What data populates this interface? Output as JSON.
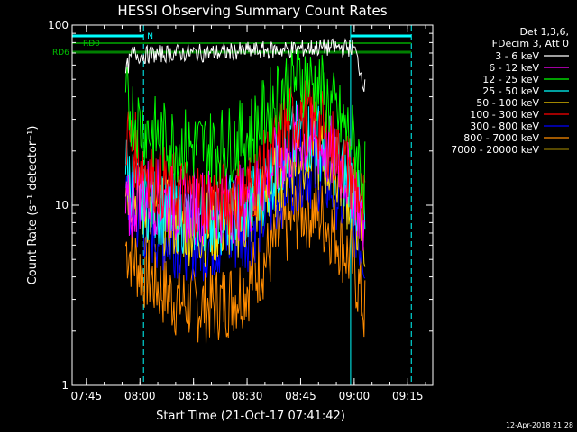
{
  "chart_data": {
    "type": "line",
    "title": "HESSI Observing Summary Count Rates",
    "xlabel": "Start Time (21-Oct-17 07:41:42)",
    "ylabel": "Count Rate (s⁻¹ detector⁻¹)",
    "y_scale": "log",
    "ylim": [
      1,
      100
    ],
    "xlim": [
      "07:41",
      "09:22"
    ],
    "x_ticks": [
      "07:45",
      "08:00",
      "08:15",
      "08:30",
      "08:45",
      "09:00",
      "09:15"
    ],
    "y_ticks": [
      "1",
      "10",
      "100"
    ],
    "legend_position": "top-right",
    "legend_header": [
      "Det 1,3,6,",
      "FDecim 3, Att 0"
    ],
    "footer_date": "12-Apr-2018 21:28",
    "markers": {
      "n_label": "N",
      "rd0_label": "RD0",
      "rd6_label": "RD6",
      "solid_vertical_times": [
        "07:41",
        "08:59"
      ],
      "dashed_vertical_times": [
        "08:01",
        "09:16"
      ]
    },
    "series": [
      {
        "name": "3 - 6 keV",
        "color": "#ffffff",
        "x": [
          "07:56",
          "07:58",
          "08:00",
          "08:10",
          "08:20",
          "08:30",
          "08:40",
          "08:50",
          "08:58",
          "09:00",
          "09:03"
        ],
        "y": [
          55,
          70,
          68,
          70,
          70,
          72,
          73,
          75,
          75,
          75,
          45
        ]
      },
      {
        "name": "6 - 12 keV",
        "color": "#ff00ff",
        "x": [
          "07:56",
          "08:00",
          "08:05",
          "08:10",
          "08:15",
          "08:20",
          "08:25",
          "08:30",
          "08:35",
          "08:40",
          "08:45",
          "08:50",
          "08:55",
          "09:00",
          "09:03"
        ],
        "y": [
          8.5,
          12,
          11,
          10,
          10,
          10,
          10,
          10.5,
          14,
          19,
          23,
          22,
          18,
          13,
          7
        ]
      },
      {
        "name": "12 - 25 keV",
        "color": "#00ff00",
        "x": [
          "07:56",
          "08:00",
          "08:05",
          "08:10",
          "08:15",
          "08:20",
          "08:25",
          "08:30",
          "08:35",
          "08:40",
          "08:45",
          "08:50",
          "08:55",
          "09:00",
          "09:03"
        ],
        "y": [
          38,
          28,
          24,
          22,
          21,
          21,
          22,
          24,
          32,
          45,
          52,
          45,
          32,
          22,
          14
        ]
      },
      {
        "name": "25 - 50 keV",
        "color": "#00ffff",
        "x": [
          "07:56",
          "08:00",
          "08:05",
          "08:10",
          "08:15",
          "08:20",
          "08:25",
          "08:30",
          "08:35",
          "08:40",
          "08:45",
          "08:50",
          "08:55",
          "09:00",
          "09:03"
        ],
        "y": [
          16,
          11,
          10,
          9,
          8.5,
          8.5,
          9,
          9.5,
          13,
          19,
          25,
          23,
          18,
          12,
          7
        ]
      },
      {
        "name": "50 - 100 keV",
        "color": "#ffd700",
        "x": [
          "07:56",
          "08:00",
          "08:05",
          "08:10",
          "08:15",
          "08:20",
          "08:25",
          "08:30",
          "08:35",
          "08:40",
          "08:45",
          "08:50",
          "08:55",
          "09:00",
          "09:03"
        ],
        "y": [
          14,
          10,
          9,
          8,
          7.5,
          7.5,
          8,
          8.5,
          11,
          16,
          20,
          19,
          15,
          10,
          6
        ]
      },
      {
        "name": "100 - 300 keV",
        "color": "#ff0000",
        "x": [
          "07:56",
          "08:00",
          "08:05",
          "08:10",
          "08:15",
          "08:20",
          "08:25",
          "08:30",
          "08:35",
          "08:40",
          "08:45",
          "08:50",
          "08:55",
          "09:00",
          "09:03"
        ],
        "y": [
          25,
          18,
          14,
          12,
          11,
          11,
          11,
          12,
          16,
          26,
          33,
          28,
          20,
          14,
          9
        ]
      },
      {
        "name": "300 - 800 keV",
        "color": "#0000ff",
        "x": [
          "07:56",
          "08:00",
          "08:05",
          "08:10",
          "08:15",
          "08:20",
          "08:25",
          "08:30",
          "08:35",
          "08:40",
          "08:45",
          "08:50",
          "08:55",
          "09:00",
          "09:03"
        ],
        "y": [
          11,
          8,
          7,
          6.5,
          6.2,
          6.2,
          6.5,
          7,
          9,
          12.5,
          16,
          15,
          12,
          8,
          5.5
        ]
      },
      {
        "name": "800 - 7000 keV",
        "color": "#ff8c00",
        "x": [
          "07:56",
          "08:00",
          "08:05",
          "08:10",
          "08:15",
          "08:20",
          "08:25",
          "08:30",
          "08:35",
          "08:40",
          "08:45",
          "08:50",
          "08:55",
          "09:00",
          "09:03"
        ],
        "y": [
          6,
          4.5,
          3.6,
          3,
          2.8,
          2.8,
          3,
          3.6,
          5,
          7,
          9.5,
          9,
          7,
          4.5,
          2.5
        ]
      },
      {
        "name": "7000 - 20000 keV",
        "color": "#8b7500",
        "x": [],
        "y": []
      }
    ]
  }
}
